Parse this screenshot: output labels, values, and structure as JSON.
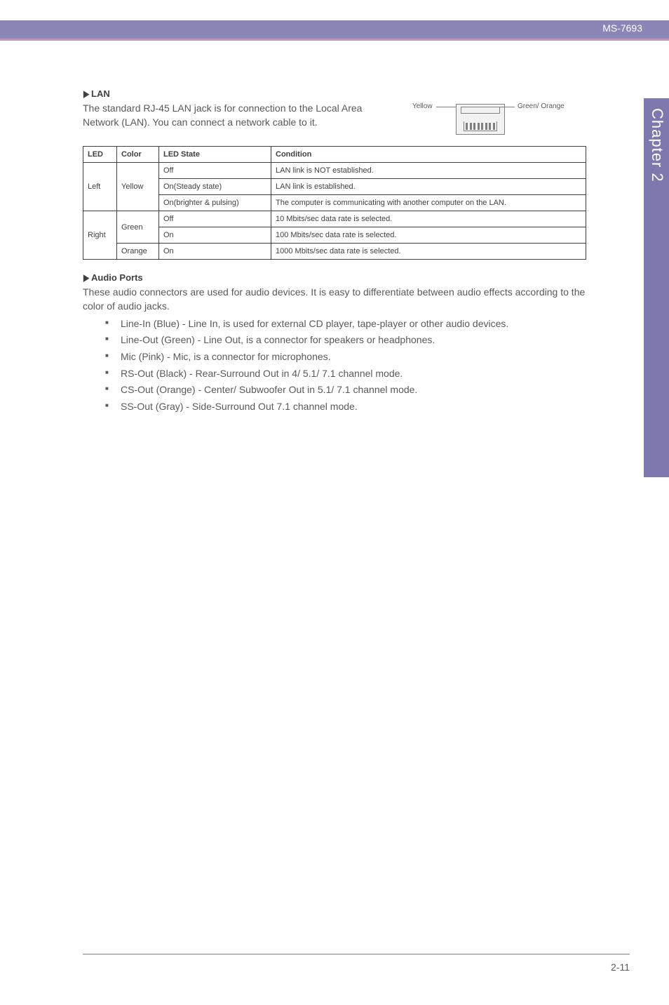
{
  "header": {
    "model": "MS-7693",
    "header_bg": "#8b86b8",
    "accent_color": "#be95b7"
  },
  "sidetab": {
    "label": "Chapter 2",
    "bg": "#7d78ae"
  },
  "lan": {
    "heading": "LAN",
    "paragraph": "The standard RJ-45 LAN jack is for connection to the Local Area Network (LAN). You can connect a network cable to it.",
    "label_yellow": "Yellow",
    "label_green": "Green/ Orange"
  },
  "led_table": {
    "columns": [
      "LED",
      "Color",
      "LED State",
      "Condition"
    ],
    "rows": [
      {
        "led": "Left",
        "led_rowspan": 3,
        "color": "Yellow",
        "color_rowspan": 3,
        "state": "Off",
        "condition": "LAN link is NOT established."
      },
      {
        "state": "On(Steady state)",
        "condition": "LAN link is established."
      },
      {
        "state": "On(brighter & pulsing)",
        "condition": "The computer is communicating with another computer on the LAN."
      },
      {
        "led": "Right",
        "led_rowspan": 3,
        "color": "Green",
        "color_rowspan": 2,
        "state": "Off",
        "condition": "10 Mbits/sec data rate is selected."
      },
      {
        "state": "On",
        "condition": "100 Mbits/sec data rate is selected."
      },
      {
        "color": "Orange",
        "color_rowspan": 1,
        "state": "On",
        "condition": "1000 Mbits/sec data rate is selected."
      }
    ]
  },
  "audio": {
    "heading": "Audio Ports",
    "intro": "These audio connectors are used for audio devices. It is easy to differentiate between audio effects according to the color of audio jacks.",
    "bullets": [
      "Line-In (Blue) - Line In, is used for external CD player, tape-player or other audio devices.",
      "Line-Out (Green) - Line Out, is a connector for speakers or headphones.",
      "Mic (Pink) - Mic, is a connector for microphones.",
      "RS-Out (Black) - Rear-Surround Out in 4/ 5.1/ 7.1 channel mode.",
      "CS-Out (Orange) - Center/ Subwoofer Out in 5.1/ 7.1 channel mode.",
      "SS-Out (Gray) - Side-Surround Out 7.1 channel mode."
    ]
  },
  "footer": {
    "page": "2-11"
  }
}
